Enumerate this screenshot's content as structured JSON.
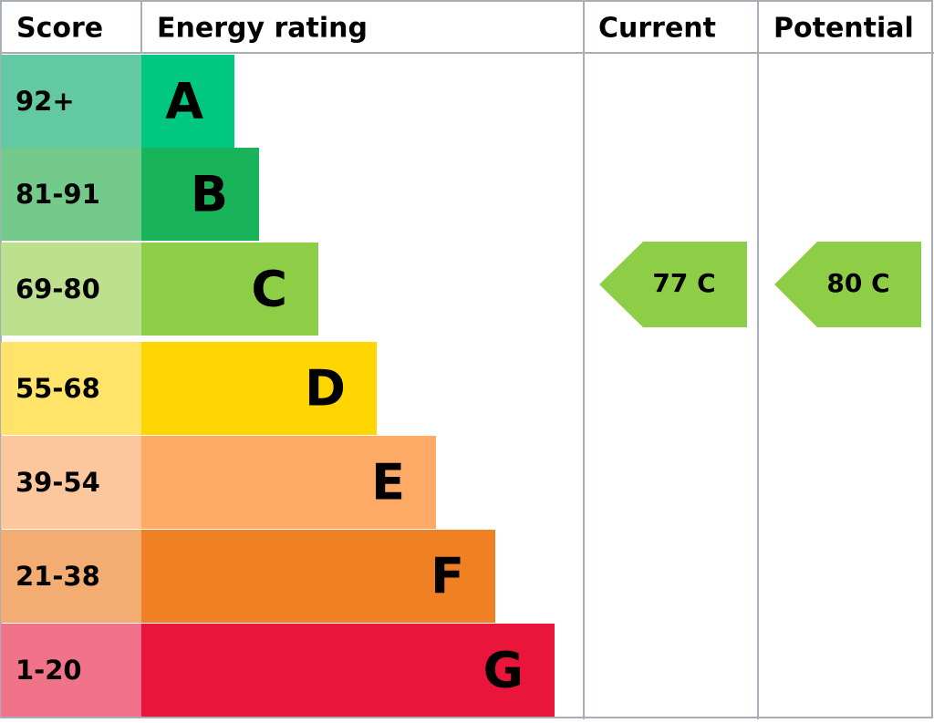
{
  "header": {
    "score": "Score",
    "energy_rating": "Energy rating",
    "current": "Current",
    "potential": "Potential"
  },
  "rows": [
    {
      "score": "92+",
      "band": "A"
    },
    {
      "score": "81-91",
      "band": "B"
    },
    {
      "score": "69-80",
      "band": "C"
    },
    {
      "score": "55-68",
      "band": "D"
    },
    {
      "score": "39-54",
      "band": "E"
    },
    {
      "score": "21-38",
      "band": "F"
    },
    {
      "score": "1-20",
      "band": "G"
    }
  ],
  "current": "77 C",
  "potential": "80 C"
}
